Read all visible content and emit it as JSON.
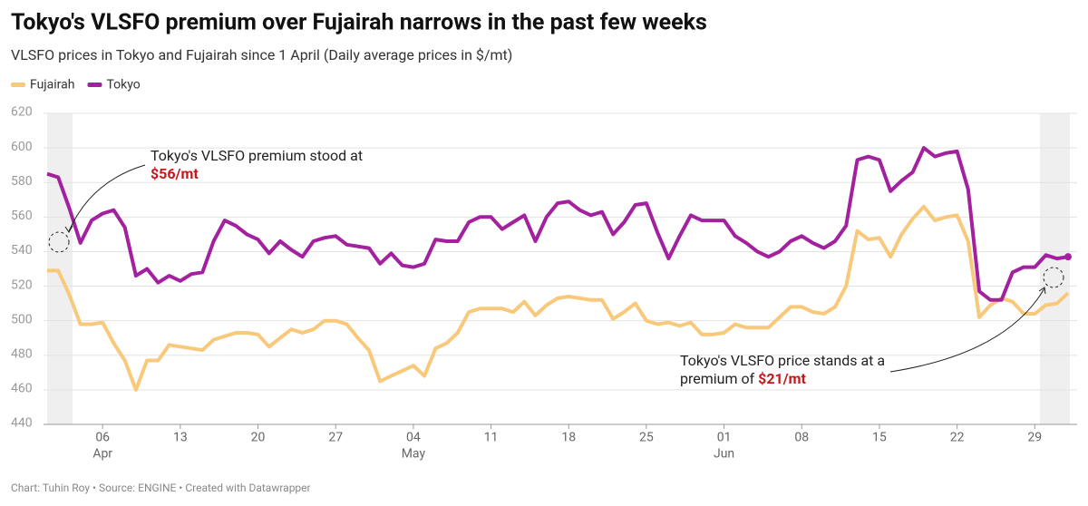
{
  "chart_data": {
    "type": "line",
    "title": "Tokyo's VLSFO premium over Fujairah narrows in the past few weeks",
    "subtitle": "VLSFO prices in Tokyo and Fujairah since 1 April (Daily average prices in $/mt)",
    "categories": [
      null,
      null,
      null,
      null,
      null,
      "06",
      null,
      null,
      null,
      null,
      null,
      null,
      "13",
      null,
      null,
      null,
      null,
      null,
      null,
      "20",
      null,
      null,
      null,
      null,
      null,
      null,
      "27",
      null,
      null,
      null,
      null,
      null,
      null,
      "04",
      null,
      null,
      null,
      null,
      null,
      null,
      "11",
      null,
      null,
      null,
      null,
      null,
      null,
      "18",
      null,
      null,
      null,
      null,
      null,
      null,
      "25",
      null,
      null,
      null,
      null,
      null,
      null,
      "01",
      null,
      null,
      null,
      null,
      null,
      null,
      "08",
      null,
      null,
      null,
      null,
      null,
      null,
      "15",
      null,
      null,
      null,
      null,
      null,
      null,
      "22",
      null,
      null,
      null,
      null,
      null,
      null,
      "29",
      null,
      null,
      null
    ],
    "category_months": [
      null,
      null,
      null,
      null,
      null,
      "Apr",
      null,
      null,
      null,
      null,
      null,
      null,
      null,
      null,
      null,
      null,
      null,
      null,
      null,
      null,
      null,
      null,
      null,
      null,
      null,
      null,
      null,
      null,
      null,
      null,
      null,
      null,
      null,
      "May",
      null,
      null,
      null,
      null,
      null,
      null,
      null,
      null,
      null,
      null,
      null,
      null,
      null,
      null,
      null,
      null,
      null,
      null,
      null,
      null,
      null,
      null,
      null,
      null,
      null,
      null,
      null,
      "Jun",
      null,
      null,
      null,
      null,
      null,
      null,
      null,
      null,
      null,
      null,
      null,
      null,
      null,
      null,
      null,
      null,
      null,
      null,
      null,
      null,
      null,
      null,
      null,
      null,
      null,
      null,
      null,
      null,
      null,
      null,
      null
    ],
    "series": [
      {
        "name": "Fujairah",
        "color": "#f9c97b",
        "values": [
          529,
          529,
          515,
          498,
          498,
          499,
          487,
          477,
          460,
          477,
          477,
          486,
          485,
          484,
          483,
          489,
          491,
          493,
          493,
          492,
          485,
          490,
          495,
          493,
          495,
          500,
          500,
          498,
          490,
          483,
          465,
          468,
          471,
          474,
          468,
          484,
          487,
          493,
          505,
          507,
          507,
          507,
          505,
          511,
          503,
          509,
          513,
          514,
          513,
          512,
          512,
          501,
          505,
          510,
          500,
          498,
          499,
          497,
          499,
          492,
          492,
          493,
          498,
          496,
          496,
          496,
          502,
          508,
          508,
          505,
          504,
          508,
          520,
          552,
          547,
          548,
          537,
          550,
          559,
          566,
          558,
          560,
          561,
          546,
          502,
          509,
          513,
          511,
          504,
          504,
          509,
          510,
          516
        ]
      },
      {
        "name": "Tokyo",
        "color": "#a3209f",
        "values": [
          585,
          583,
          565,
          545,
          558,
          562,
          564,
          554,
          526,
          530,
          522,
          526,
          523,
          527,
          528,
          546,
          558,
          555,
          550,
          547,
          539,
          546,
          541,
          537,
          546,
          548,
          549,
          544,
          543,
          542,
          533,
          539,
          532,
          531,
          533,
          547,
          546,
          546,
          557,
          560,
          560,
          553,
          557,
          561,
          546,
          560,
          568,
          569,
          564,
          561,
          563,
          550,
          557,
          567,
          568,
          551,
          536,
          549,
          561,
          558,
          558,
          558,
          549,
          545,
          540,
          537,
          540,
          546,
          549,
          545,
          542,
          546,
          555,
          593,
          595,
          593,
          575,
          581,
          586,
          600,
          595,
          597,
          598,
          576,
          517,
          512,
          512,
          528,
          531,
          531,
          538,
          536,
          537
        ]
      }
    ],
    "ylim": [
      440,
      620
    ],
    "yticks": [
      440,
      460,
      480,
      500,
      520,
      540,
      560,
      580,
      600,
      620
    ],
    "grid": true,
    "annotations": [
      {
        "text": "Tokyo's VLSFO premium stood at",
        "highlight": "$56/mt"
      },
      {
        "text": "Tokyo's VLSFO price stands at a",
        "text2": "premium of ",
        "highlight": "$21/mt"
      }
    ],
    "footer": "Chart: Tuhin Roy • Source: ENGINE • Created with Datawrapper"
  }
}
